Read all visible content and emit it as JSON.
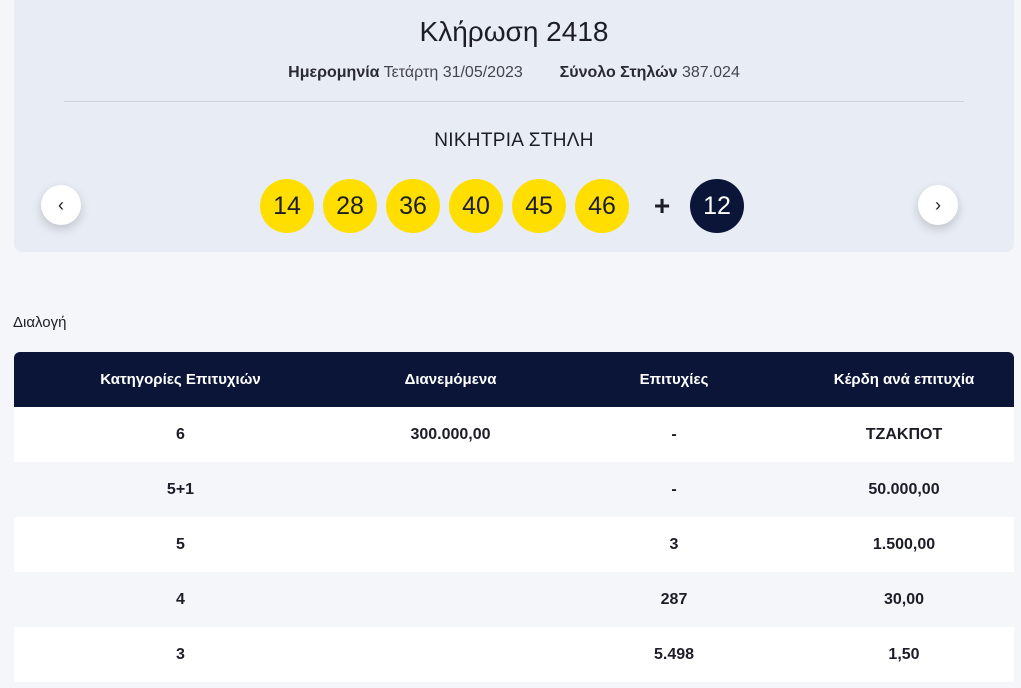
{
  "draw": {
    "title": "Κλήρωση 2418",
    "date_label": "Ημερομηνία",
    "date_value": "Τετάρτη 31/05/2023",
    "columns_label": "Σύνολο Στηλών",
    "columns_value": "387.024",
    "winning_title": "ΝΙΚΗΤΡΙΑ ΣΤΗΛΗ",
    "numbers": [
      "14",
      "28",
      "36",
      "40",
      "45",
      "46"
    ],
    "plus": "+",
    "bonus": "12",
    "prev_icon": "‹",
    "next_icon": "›"
  },
  "colors": {
    "ball": "#ffde00",
    "bonus_ball": "#0b1538",
    "header_bg": "#0b1538"
  },
  "selection_label": "Διαλογή",
  "table": {
    "headers": [
      "Κατηγορίες Επιτυχιών",
      "Διανεμόμενα",
      "Επιτυχίες",
      "Κέρδη ανά επιτυχία"
    ],
    "rows": [
      [
        "6",
        "300.000,00",
        "-",
        "ΤΖΑΚΠΟΤ"
      ],
      [
        "5+1",
        "",
        "-",
        "50.000,00"
      ],
      [
        "5",
        "",
        "3",
        "1.500,00"
      ],
      [
        "4",
        "",
        "287",
        "30,00"
      ],
      [
        "3",
        "",
        "5.498",
        "1,50"
      ]
    ]
  }
}
